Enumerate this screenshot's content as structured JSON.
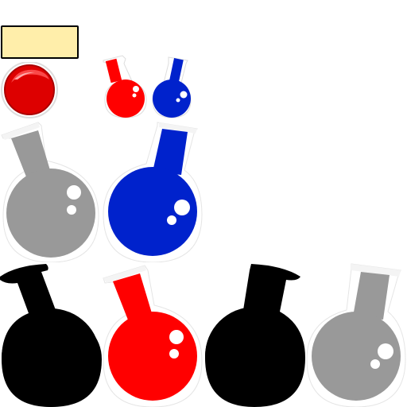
{
  "sprite_sheet": {
    "label_box": {
      "text": "",
      "fill": "#ffeeaa",
      "border": "#000000"
    },
    "red_button": {
      "color": "#dd0000",
      "highlight": "#ff6666"
    },
    "flasks": [
      {
        "name": "small-red-flask",
        "color": "#ff0000"
      },
      {
        "name": "small-blue-flask",
        "color": "#0022cc"
      },
      {
        "name": "large-gray-flask",
        "color": "#999999"
      },
      {
        "name": "large-blue-flask",
        "color": "#0022cc"
      },
      {
        "name": "large-black-flask-1",
        "color": "#000000"
      },
      {
        "name": "large-red-flask",
        "color": "#ff0000"
      },
      {
        "name": "large-black-flask-2",
        "color": "#000000"
      },
      {
        "name": "large-gray-flask-2",
        "color": "#999999"
      }
    ]
  }
}
